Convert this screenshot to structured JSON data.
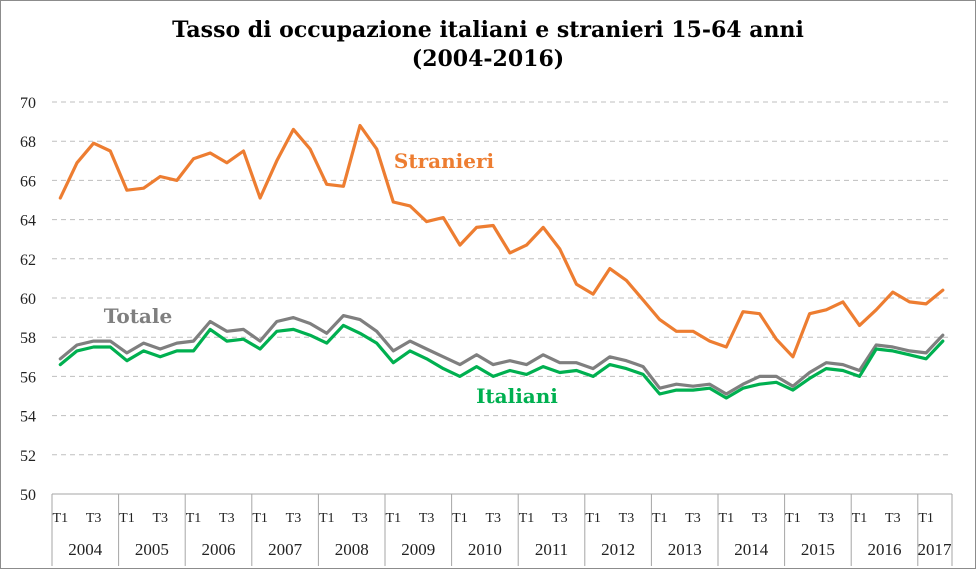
{
  "chart_data": {
    "type": "line",
    "title": "Tasso di occupazione italiani e stranieri 15-64 anni",
    "subtitle": "(2004-2016)",
    "ylim": [
      50,
      70
    ],
    "yticks": [
      50,
      52,
      54,
      56,
      58,
      60,
      62,
      64,
      66,
      68,
      70
    ],
    "grid": true,
    "years": [
      "2004",
      "2005",
      "2006",
      "2007",
      "2008",
      "2009",
      "2010",
      "2011",
      "2012",
      "2013",
      "2014",
      "2015",
      "2016",
      "2017"
    ],
    "quarter_labels": [
      "T1",
      "T3"
    ],
    "series": [
      {
        "name": "Stranieri",
        "color": "#ed7d31",
        "values": [
          65.1,
          66.9,
          67.9,
          67.5,
          65.5,
          65.6,
          66.2,
          66.0,
          67.1,
          67.4,
          66.9,
          67.5,
          65.1,
          67.0,
          68.6,
          67.6,
          65.8,
          65.7,
          68.8,
          67.6,
          64.9,
          64.7,
          63.9,
          64.1,
          62.7,
          63.6,
          63.7,
          62.3,
          62.7,
          63.6,
          62.5,
          60.7,
          60.2,
          61.5,
          60.9,
          59.9,
          58.9,
          58.3,
          58.3,
          57.8,
          57.5,
          59.3,
          59.2,
          57.9,
          57.0,
          59.2,
          59.4,
          59.8,
          58.6,
          59.4,
          60.3,
          59.8,
          59.7,
          60.4
        ]
      },
      {
        "name": "Totale",
        "color": "#7f7f7f",
        "values": [
          56.9,
          57.6,
          57.8,
          57.8,
          57.2,
          57.7,
          57.4,
          57.7,
          57.8,
          58.8,
          58.3,
          58.4,
          57.8,
          58.8,
          59.0,
          58.7,
          58.2,
          59.1,
          58.9,
          58.3,
          57.3,
          57.8,
          57.4,
          57.0,
          56.6,
          57.1,
          56.6,
          56.8,
          56.6,
          57.1,
          56.7,
          56.7,
          56.4,
          57.0,
          56.8,
          56.5,
          55.4,
          55.6,
          55.5,
          55.6,
          55.1,
          55.6,
          56.0,
          56.0,
          55.5,
          56.2,
          56.7,
          56.6,
          56.3,
          57.6,
          57.5,
          57.3,
          57.2,
          58.1
        ]
      },
      {
        "name": "Italiani",
        "color": "#00b050",
        "values": [
          56.6,
          57.3,
          57.5,
          57.5,
          56.8,
          57.3,
          57.0,
          57.3,
          57.3,
          58.4,
          57.8,
          57.9,
          57.4,
          58.3,
          58.4,
          58.1,
          57.7,
          58.6,
          58.2,
          57.7,
          56.7,
          57.3,
          56.9,
          56.4,
          56.0,
          56.5,
          56.0,
          56.3,
          56.1,
          56.5,
          56.2,
          56.3,
          56.0,
          56.6,
          56.4,
          56.1,
          55.1,
          55.3,
          55.3,
          55.4,
          54.9,
          55.4,
          55.6,
          55.7,
          55.3,
          55.9,
          56.4,
          56.3,
          56.0,
          57.4,
          57.3,
          57.1,
          56.9,
          57.8
        ]
      }
    ]
  }
}
